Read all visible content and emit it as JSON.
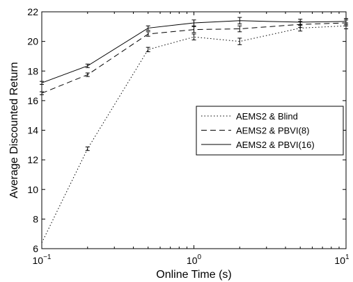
{
  "chart_data": {
    "type": "line",
    "xscale": "log",
    "xlim": [
      0.1,
      10
    ],
    "ylim": [
      6,
      22
    ],
    "xlabel": "Online Time (s)",
    "ylabel": "Average Discounted Return",
    "xticks": [
      {
        "value": 0.1,
        "base": "10",
        "exp": "−1"
      },
      {
        "value": 1,
        "base": "10",
        "exp": "0"
      },
      {
        "value": 10,
        "base": "10",
        "exp": "1"
      }
    ],
    "yticks": [
      6,
      8,
      10,
      12,
      14,
      16,
      18,
      20,
      22
    ],
    "grid": false,
    "legend_position": "right",
    "x": [
      0.1,
      0.2,
      0.5,
      1,
      2,
      5,
      10
    ],
    "series": [
      {
        "name": "AEMS2 & Blind",
        "style": "dotted",
        "color": "#000000",
        "values": [
          6.4,
          12.75,
          19.45,
          20.3,
          20.0,
          20.9,
          21.05
        ],
        "errors": [
          0.0,
          0.12,
          0.15,
          0.2,
          0.22,
          0.2,
          0.2
        ]
      },
      {
        "name": "AEMS2 & PBVI(8)",
        "style": "dashed",
        "color": "#000000",
        "values": [
          16.5,
          17.75,
          20.5,
          20.8,
          20.85,
          21.15,
          21.25
        ],
        "errors": [
          0.1,
          0.12,
          0.15,
          0.2,
          0.2,
          0.2,
          0.2
        ]
      },
      {
        "name": "AEMS2 & PBVI(16)",
        "style": "solid",
        "color": "#000000",
        "values": [
          17.2,
          18.35,
          20.9,
          21.25,
          21.4,
          21.3,
          21.35
        ],
        "errors": [
          0.1,
          0.12,
          0.15,
          0.2,
          0.22,
          0.2,
          0.2
        ]
      }
    ]
  }
}
